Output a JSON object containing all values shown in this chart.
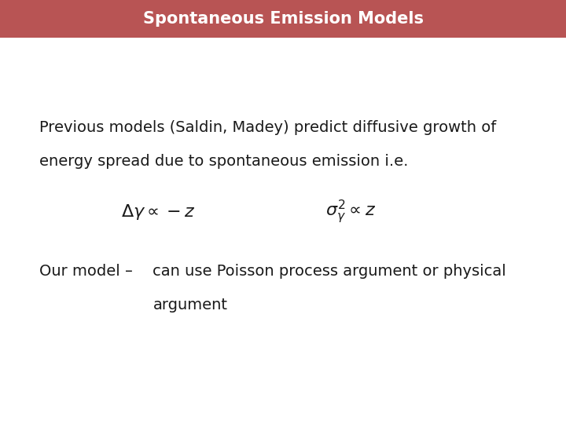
{
  "title": "Spontaneous Emission Models",
  "title_bg_color": "#b85454",
  "title_text_color": "#ffffff",
  "body_bg_color": "#ffffff",
  "title_bar_height": 0.088,
  "title_fontsize": 15,
  "body_text_color": "#1a1a1a",
  "line1": "Previous models (Saldin, Madey) predict diffusive growth of",
  "line2": "energy spread due to spontaneous emission i.e.",
  "eq1": "$\\Delta\\gamma \\propto -z$",
  "eq2": "$\\sigma_{\\gamma}^{2} \\propto z$",
  "our_model_label": "Our model –",
  "our_model_text1": "can use Poisson process argument or physical",
  "our_model_text2": "argument",
  "body_fontsize": 14,
  "eq_fontsize": 14
}
